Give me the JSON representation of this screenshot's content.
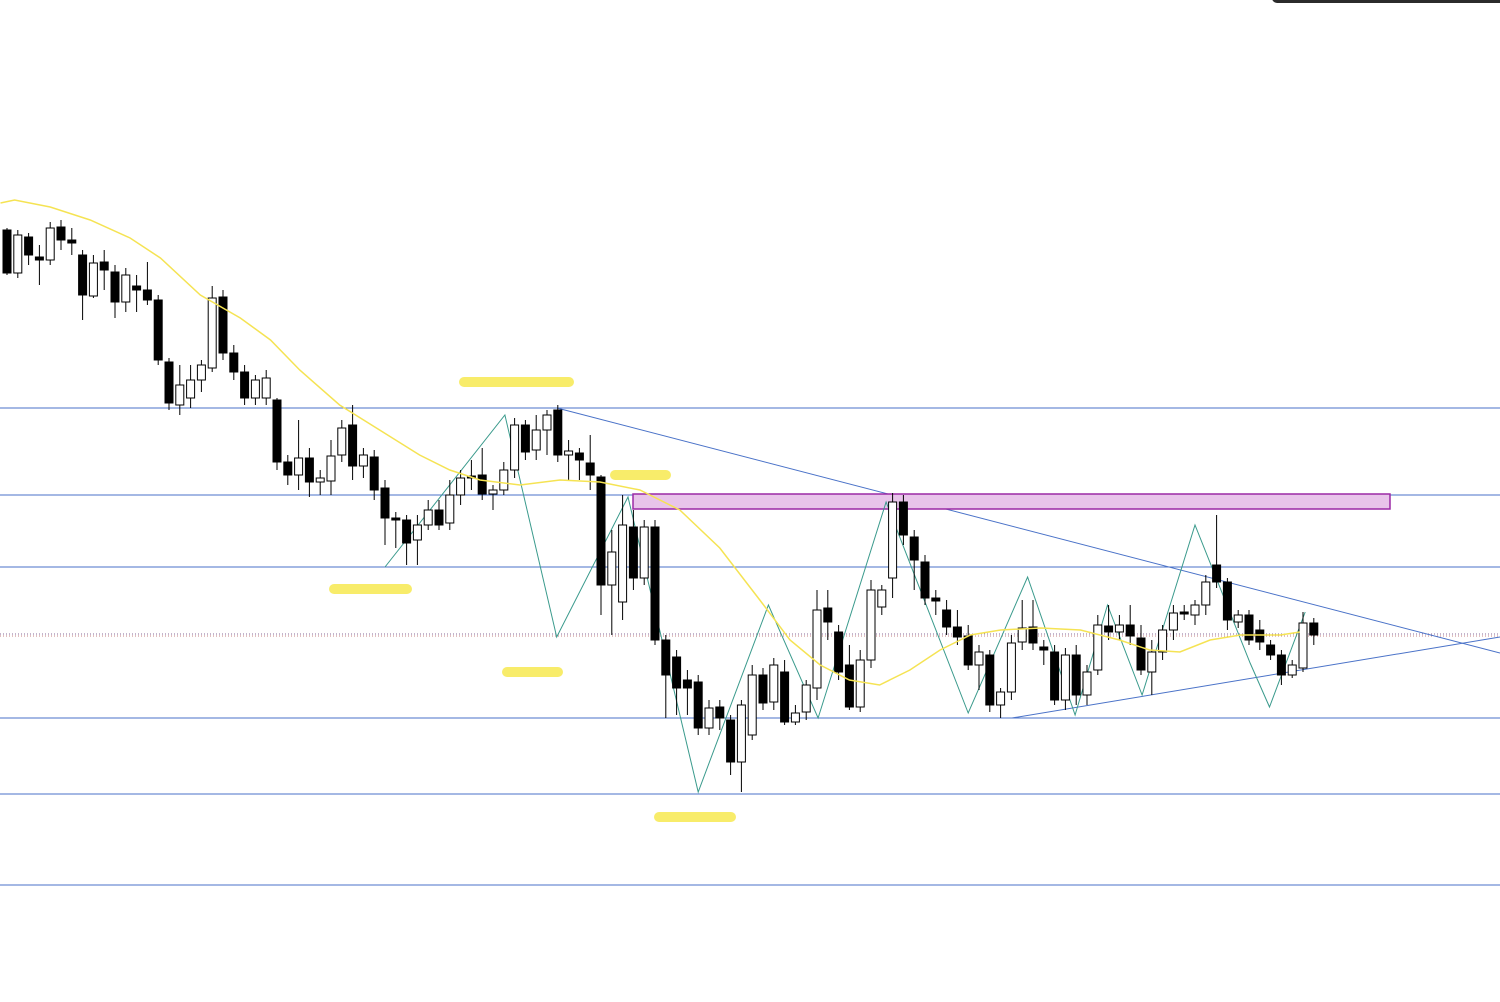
{
  "chart_data": {
    "type": "candlestick",
    "categories": [
      null,
      null,
      null,
      null,
      null,
      null,
      null,
      null,
      null,
      null,
      null,
      null,
      null,
      null,
      null,
      null,
      null,
      null,
      null,
      null,
      null,
      null,
      null,
      null,
      null,
      null,
      null,
      null,
      null,
      null,
      null,
      null,
      null,
      null,
      null,
      null,
      null,
      null,
      null,
      null,
      null,
      null,
      null,
      null,
      null,
      null,
      null,
      null,
      null,
      null,
      null,
      null,
      null,
      null,
      null,
      null,
      null,
      null,
      null,
      null,
      null,
      null,
      null,
      null,
      null,
      null,
      null,
      null,
      null,
      null,
      null,
      null,
      null,
      null,
      null,
      null,
      null,
      null,
      null,
      null,
      null,
      null,
      null,
      null,
      null,
      null,
      null,
      null,
      null,
      null,
      null,
      null,
      null,
      null,
      null,
      null,
      null,
      null,
      null,
      null,
      null,
      null,
      null,
      null,
      null,
      null,
      null,
      null,
      null,
      null,
      null,
      null,
      null,
      null,
      null,
      null,
      null,
      null,
      null,
      null,
      null,
      null
    ],
    "open": [
      770,
      727,
      763,
      743,
      740,
      773,
      760,
      745,
      704,
      738,
      728,
      698,
      714,
      710,
      700,
      638,
      595,
      602,
      620,
      632,
      703,
      647,
      628,
      602,
      602,
      600,
      538,
      525,
      542,
      518,
      519,
      545,
      575,
      534,
      543,
      512,
      482,
      480,
      460,
      475,
      490,
      477,
      505,
      524,
      525,
      506,
      510,
      530,
      575,
      550,
      570,
      590,
      545,
      547,
      537,
      523,
      415,
      398,
      473,
      422,
      473,
      360,
      343,
      320,
      318,
      272,
      293,
      280,
      238,
      265,
      325,
      298,
      328,
      278,
      288,
      312,
      392,
      368,
      335,
      293,
      340,
      393,
      422,
      498,
      463,
      438,
      402,
      390,
      373,
      364,
      335,
      345,
      295,
      308,
      358,
      373,
      353,
      348,
      300,
      345,
      305,
      330,
      374,
      368,
      375,
      362,
      328,
      348,
      370,
      388,
      385,
      395,
      435,
      418,
      378,
      385,
      370,
      355,
      345,
      325,
      332,
      377
    ],
    "high": [
      772,
      770,
      767,
      755,
      778,
      780,
      772,
      750,
      745,
      750,
      735,
      732,
      725,
      738,
      705,
      642,
      635,
      635,
      640,
      714,
      710,
      655,
      635,
      625,
      630,
      602,
      545,
      580,
      552,
      530,
      560,
      580,
      595,
      552,
      550,
      520,
      488,
      485,
      485,
      500,
      500,
      520,
      530,
      540,
      552,
      515,
      538,
      582,
      580,
      585,
      590,
      595,
      560,
      552,
      565,
      525,
      470,
      505,
      490,
      480,
      480,
      365,
      350,
      330,
      325,
      300,
      300,
      285,
      300,
      335,
      332,
      342,
      340,
      295,
      320,
      410,
      410,
      375,
      355,
      350,
      420,
      415,
      507,
      505,
      470,
      445,
      410,
      400,
      390,
      375,
      355,
      350,
      312,
      365,
      400,
      400,
      360,
      355,
      352,
      355,
      335,
      385,
      395,
      385,
      395,
      375,
      360,
      375,
      395,
      395,
      400,
      425,
      485,
      422,
      390,
      390,
      380,
      360,
      350,
      340,
      388,
      382
    ],
    "low": [
      725,
      722,
      735,
      715,
      735,
      750,
      745,
      680,
      702,
      710,
      682,
      688,
      688,
      695,
      635,
      590,
      585,
      592,
      608,
      628,
      640,
      620,
      595,
      595,
      595,
      530,
      515,
      510,
      503,
      505,
      505,
      538,
      520,
      522,
      500,
      455,
      452,
      435,
      435,
      470,
      470,
      470,
      495,
      510,
      500,
      490,
      505,
      522,
      540,
      540,
      545,
      538,
      520,
      520,
      510,
      385,
      365,
      380,
      410,
      415,
      355,
      282,
      285,
      285,
      265,
      265,
      270,
      225,
      208,
      260,
      290,
      290,
      275,
      275,
      280,
      300,
      360,
      320,
      290,
      288,
      332,
      385,
      402,
      455,
      410,
      395,
      385,
      365,
      355,
      330,
      310,
      288,
      282,
      300,
      350,
      350,
      335,
      295,
      290,
      295,
      295,
      325,
      360,
      360,
      355,
      325,
      305,
      340,
      360,
      380,
      375,
      385,
      412,
      370,
      372,
      355,
      350,
      340,
      315,
      322,
      328,
      355
    ],
    "close": [
      727,
      765,
      745,
      740,
      772,
      760,
      757,
      705,
      737,
      730,
      698,
      725,
      710,
      700,
      640,
      597,
      615,
      620,
      635,
      702,
      647,
      628,
      602,
      620,
      622,
      538,
      525,
      542,
      518,
      522,
      544,
      572,
      534,
      545,
      510,
      482,
      480,
      457,
      475,
      490,
      475,
      505,
      522,
      522,
      506,
      510,
      530,
      575,
      548,
      570,
      585,
      545,
      549,
      540,
      525,
      415,
      448,
      475,
      422,
      473,
      360,
      325,
      312,
      312,
      272,
      292,
      282,
      238,
      295,
      325,
      297,
      335,
      278,
      287,
      315,
      390,
      378,
      328,
      293,
      340,
      410,
      410,
      498,
      465,
      440,
      402,
      399,
      373,
      363,
      335,
      348,
      295,
      308,
      357,
      372,
      357,
      350,
      300,
      345,
      305,
      328,
      375,
      368,
      375,
      364,
      330,
      348,
      370,
      387,
      386,
      395,
      418,
      418,
      380,
      385,
      360,
      358,
      345,
      325,
      335,
      377,
      365
    ],
    "ma": {
      "color": "#f5e353",
      "x": [
        -0.6,
        0.7,
        4,
        7.7,
        11.4,
        14.2,
        17.9,
        21.6,
        24.4,
        27.1,
        30.8,
        34.5,
        38.2,
        41,
        43.8,
        47.5,
        51.2,
        54.9,
        58.6,
        62.3,
        66,
        69.7,
        72.5,
        75.3,
        78,
        80.8,
        83.6,
        86.4,
        89.2,
        92,
        95.7,
        99.4,
        103,
        105.8,
        108.6,
        111.4,
        114.2,
        117.9,
        119.7
      ],
      "values": [
        797,
        800,
        793,
        780,
        762,
        742,
        705,
        682,
        660,
        630,
        595,
        570,
        545,
        530,
        520,
        515,
        520,
        518,
        510,
        490,
        452,
        400,
        360,
        335,
        320,
        315,
        330,
        350,
        365,
        370,
        372,
        370,
        360,
        350,
        348,
        360,
        365,
        365,
        368
      ]
    },
    "zigzag": {
      "color": "#3a9a8c",
      "x": [
        35,
        46.1,
        50.9,
        57.5,
        64,
        70.5,
        75.1,
        81.4,
        89,
        94.5,
        98.9,
        101.9,
        105.1,
        110,
        115.1,
        116.9,
        120.2
      ],
      "values": [
        433,
        585,
        363,
        503,
        208,
        395,
        282,
        498,
        287,
        423,
        285,
        395,
        305,
        475,
        337,
        293,
        388
      ]
    },
    "levels": [
      592,
      505,
      433,
      282,
      206,
      115
    ],
    "level_color": "#4a72c8",
    "ylim": [
      -2,
      1000
    ]
  }
}
